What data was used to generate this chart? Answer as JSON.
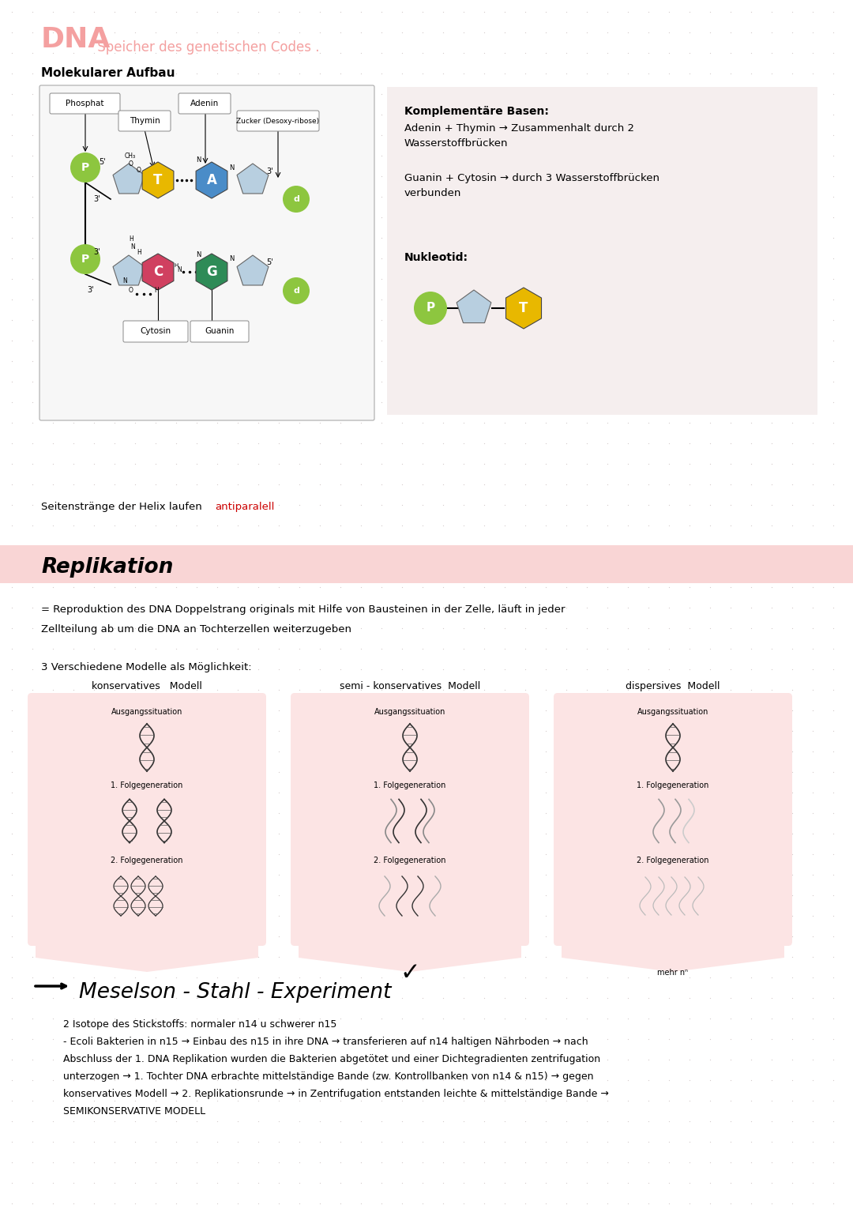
{
  "bg_color": "#ffffff",
  "dot_color": "#d4cccc",
  "title_dna": "DNA",
  "title_sub": " Speicher des genetischen Codes .",
  "section1_title": "Molekularer Aufbau",
  "kompl_title": "Komplementäre Basen:",
  "kompl_text1": "Adenin + Thymin → Zusammenhalt durch 2\nWasserstoffbrücken",
  "kompl_text2": "Guanin + Cytosin → durch 3 Wasserstoffbrücken\nverbunden",
  "nukleotid_title": "Nukleotid:",
  "antiparallel_black": "Seitenstränge der Helix laufen ",
  "antiparallel_red": "antiparalell",
  "replication_title": "Replikation",
  "replication_line1": "= Reproduktion des DNA Doppelstrang originals mit Hilfe von Bausteinen in der Zelle, läuft in jeder",
  "replication_line2": "Zellteilung ab um die DNA an Tochterzellen weiterzugeben",
  "modell_intro": "3 Verschiedene Modelle als Möglichkeit:",
  "modell1_title": "konservatives   Modell",
  "modell2_title": "semi - konservatives  Modell",
  "modell3_title": "dispersives  Modell",
  "ausgangssituation": "Ausgangssituation",
  "folgegeneration1": "1. Folgegeneration",
  "folgegeneration2": "2. Folgegeneration",
  "meselson_title": "Meselson - Stahl - Experiment",
  "meselson_line1": "2 Isotope des Stickstoffs: normaler n14 u schwerer n15",
  "meselson_line2": "- Ecoli Bakterien in n15 → Einbau des n15 in ihre DNA → transferieren auf n14 haltigen Nährboden → nach",
  "meselson_line3": "Abschluss der 1. DNA Replikation wurden die Bakterien abgetötet und einer Dichtegradienten zentrifugation",
  "meselson_line4": "unterzogen → 1. Tochter DNA erbrachte mittelständige Bande (zw. Kontrollbanken von n14 & n15) → gegen",
  "meselson_line5": "konservatives Modell → 2. Replikationsrunde → in Zentrifugation entstanden leichte & mittelständige Bande →",
  "meselson_line6": "SEMIKONSERVATIVE MODELL",
  "pink_light": "#f4a0a0",
  "pink_title": "#f08080",
  "pink_bg": "#fce4e4",
  "salmon_bg": "#f9d5d5",
  "green_circle": "#8dc63f",
  "yellow_hex": "#e8b800",
  "pink_hex": "#d04060",
  "blue_hex": "#4a8cc8",
  "green_hex": "#2e7d32",
  "red_text": "#cc0000",
  "dark_green_hex": "#2e8b57"
}
